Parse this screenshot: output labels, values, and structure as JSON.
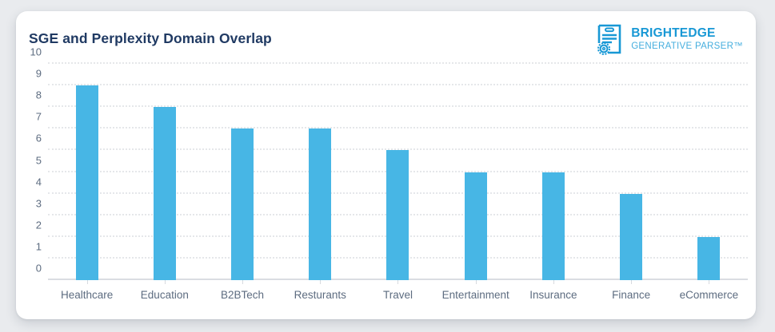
{
  "card": {
    "title": "SGE and Perplexity Domain Overlap"
  },
  "logo": {
    "icon": "document-seal-icon",
    "primary": "BRIGHTEDGE",
    "secondary": "GENERATIVE PARSER™",
    "primary_color": "#1898d5",
    "secondary_color": "#45aede"
  },
  "colors": {
    "bar": "#47b6e5",
    "title": "#203a63",
    "axis_text": "#5d6c80",
    "gridline": "#e5e7ea",
    "baseline": "#dadde2",
    "page_background": "#e9ebee",
    "card_background": "#ffffff"
  },
  "chart_data": {
    "type": "bar",
    "title": "SGE and Perplexity Domain Overlap",
    "categories": [
      "Healthcare",
      "Education",
      "B2BTech",
      "Resturants",
      "Travel",
      "Entertainment",
      "Insurance",
      "Finance",
      "eCommerce"
    ],
    "values": [
      9,
      8,
      7,
      7,
      6,
      5,
      5,
      4,
      2
    ],
    "xlabel": "",
    "ylabel": "",
    "ylim": [
      0,
      10
    ],
    "ytick_step": 1,
    "grid": "horizontal-dotted",
    "legend": "none",
    "bar_color": "#47b6e5"
  }
}
